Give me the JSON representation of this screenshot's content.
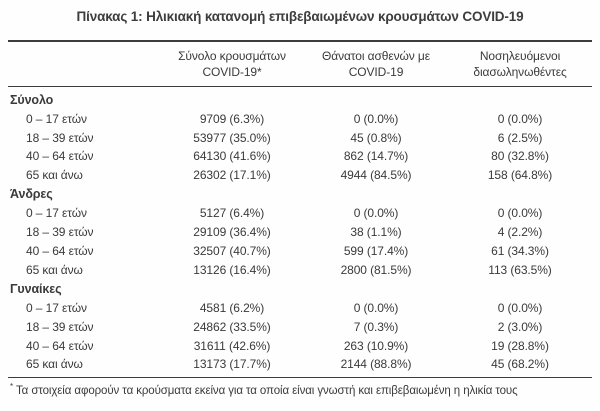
{
  "title": "Πίνακας 1: Ηλικιακή κατανομή επιβεβαιωμένων κρουσμάτων COVID-19",
  "table": {
    "columns": [
      {
        "line1": "Σύνολο κρουσμάτων",
        "line2": "COVID-19*"
      },
      {
        "line1": "Θάνατοι ασθενών με",
        "line2": "COVID-19"
      },
      {
        "line1": "Νοσηλευόμενοι",
        "line2": "διασωληνωθέντες"
      }
    ],
    "sections": [
      {
        "key": "total",
        "label": "Σύνολο",
        "rows": [
          {
            "age": "0 – 17 ετών",
            "cases": "9709 (6.3%)",
            "deaths": "0 (0.0%)",
            "intubated": "0 (0.0%)"
          },
          {
            "age": "18 – 39 ετών",
            "cases": "53977 (35.0%)",
            "deaths": "45 (0.8%)",
            "intubated": "6 (2.5%)"
          },
          {
            "age": "40 – 64 ετών",
            "cases": "64130 (41.6%)",
            "deaths": "862 (14.7%)",
            "intubated": "80 (32.8%)"
          },
          {
            "age": "65 και άνω",
            "cases": "26302 (17.1%)",
            "deaths": "4944 (84.5%)",
            "intubated": "158 (64.8%)"
          }
        ]
      },
      {
        "key": "men",
        "label": "Άνδρες",
        "rows": [
          {
            "age": "0 – 17 ετών",
            "cases": "5127 (6.4%)",
            "deaths": "0 (0.0%)",
            "intubated": "0 (0.0%)"
          },
          {
            "age": "18 – 39 ετών",
            "cases": "29109 (36.4%)",
            "deaths": "38 (1.1%)",
            "intubated": "4 (2.2%)"
          },
          {
            "age": "40 – 64 ετών",
            "cases": "32507 (40.7%)",
            "deaths": "599 (17.4%)",
            "intubated": "61 (34.3%)"
          },
          {
            "age": "65 και άνω",
            "cases": "13126 (16.4%)",
            "deaths": "2800 (81.5%)",
            "intubated": "113 (63.5%)"
          }
        ]
      },
      {
        "key": "women",
        "label": "Γυναίκες",
        "rows": [
          {
            "age": "0 – 17 ετών",
            "cases": "4581 (6.2%)",
            "deaths": "0 (0.0%)",
            "intubated": "0 (0.0%)"
          },
          {
            "age": "18 – 39 ετών",
            "cases": "24862 (33.5%)",
            "deaths": "7 (0.3%)",
            "intubated": "2 (3.0%)"
          },
          {
            "age": "40 – 64 ετών",
            "cases": "31611 (42.6%)",
            "deaths": "263 (10.9%)",
            "intubated": "19 (28.8%)"
          },
          {
            "age": "65 και άνω",
            "cases": "13173 (17.7%)",
            "deaths": "2144 (88.8%)",
            "intubated": "45 (68.2%)"
          }
        ]
      }
    ]
  },
  "footnote": {
    "marker": "*",
    "text": "Τα στοιχεία αφορούν τα κρούσματα εκείνα για τα οποία είναι γνωστή και επιβεβαιωμένη η ηλικία τους"
  },
  "colors": {
    "text": "#3a3a3a",
    "rule": "#3c3c3c",
    "background": "#fefefe"
  }
}
